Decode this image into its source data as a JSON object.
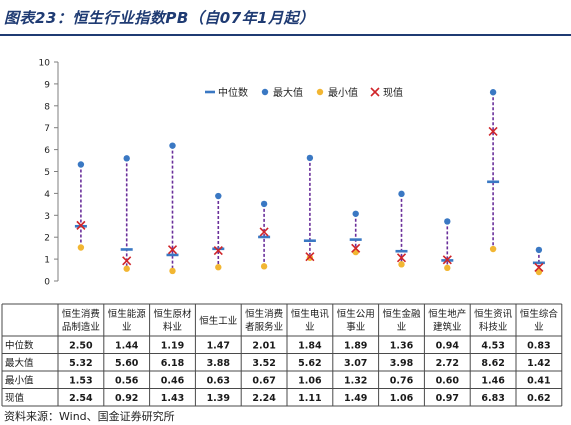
{
  "header": {
    "title": "图表23：恒生行业指数PB（自07年1月起）"
  },
  "source": {
    "text": "资料来源：Wind、国金证券研究所"
  },
  "colors": {
    "median": "#3a78c3",
    "max": "#3a78c3",
    "min": "#f2b632",
    "current": "#d0252a",
    "range": "#6a2f9a",
    "grid": "#d9d9d9"
  },
  "chart_data": {
    "type": "scatter",
    "ylim": [
      0,
      10
    ],
    "yticks": [
      "0",
      "1",
      "2",
      "3",
      "4",
      "5",
      "6",
      "7",
      "8",
      "9",
      "10"
    ],
    "legend_position": "top-center",
    "grid": false,
    "categories": [
      [
        "恒生消费",
        "品制造业"
      ],
      [
        "恒生能源",
        "业"
      ],
      [
        "恒生原材",
        "料业"
      ],
      [
        "恒生工业"
      ],
      [
        "恒生消费",
        "者服务业"
      ],
      [
        "恒生电讯",
        "业"
      ],
      [
        "恒生公用",
        "事业"
      ],
      [
        "恒生金融",
        "业"
      ],
      [
        "恒生地产",
        "建筑业"
      ],
      [
        "恒生资讯",
        "科技业"
      ],
      [
        "恒生综合",
        "业"
      ]
    ],
    "series": [
      {
        "name": "中位数",
        "key": "median",
        "values": [
          2.5,
          1.44,
          1.19,
          1.47,
          2.01,
          1.84,
          1.89,
          1.36,
          0.94,
          4.53,
          0.83
        ]
      },
      {
        "name": "最大值",
        "key": "max",
        "values": [
          5.32,
          5.6,
          6.18,
          3.88,
          3.52,
          5.62,
          3.07,
          3.98,
          2.72,
          8.62,
          1.42
        ]
      },
      {
        "name": "最小值",
        "key": "min",
        "values": [
          1.53,
          0.56,
          0.46,
          0.63,
          0.67,
          1.06,
          1.32,
          0.76,
          0.6,
          1.46,
          0.41
        ]
      },
      {
        "name": "现值",
        "key": "current",
        "values": [
          2.54,
          0.92,
          1.43,
          1.39,
          2.24,
          1.11,
          1.49,
          1.06,
          0.97,
          6.83,
          0.62
        ]
      }
    ],
    "table_rows": [
      {
        "label": "中位数",
        "values": [
          "2.50",
          "1.44",
          "1.19",
          "1.47",
          "2.01",
          "1.84",
          "1.89",
          "1.36",
          "0.94",
          "4.53",
          "0.83"
        ]
      },
      {
        "label": "最大值",
        "values": [
          "5.32",
          "5.60",
          "6.18",
          "3.88",
          "3.52",
          "5.62",
          "3.07",
          "3.98",
          "2.72",
          "8.62",
          "1.42"
        ]
      },
      {
        "label": "最小值",
        "values": [
          "1.53",
          "0.56",
          "0.46",
          "0.63",
          "0.67",
          "1.06",
          "1.32",
          "0.76",
          "0.60",
          "1.46",
          "0.41"
        ]
      },
      {
        "label": "现值",
        "values": [
          "2.54",
          "0.92",
          "1.43",
          "1.39",
          "2.24",
          "1.11",
          "1.49",
          "1.06",
          "0.97",
          "6.83",
          "0.62"
        ]
      }
    ]
  }
}
